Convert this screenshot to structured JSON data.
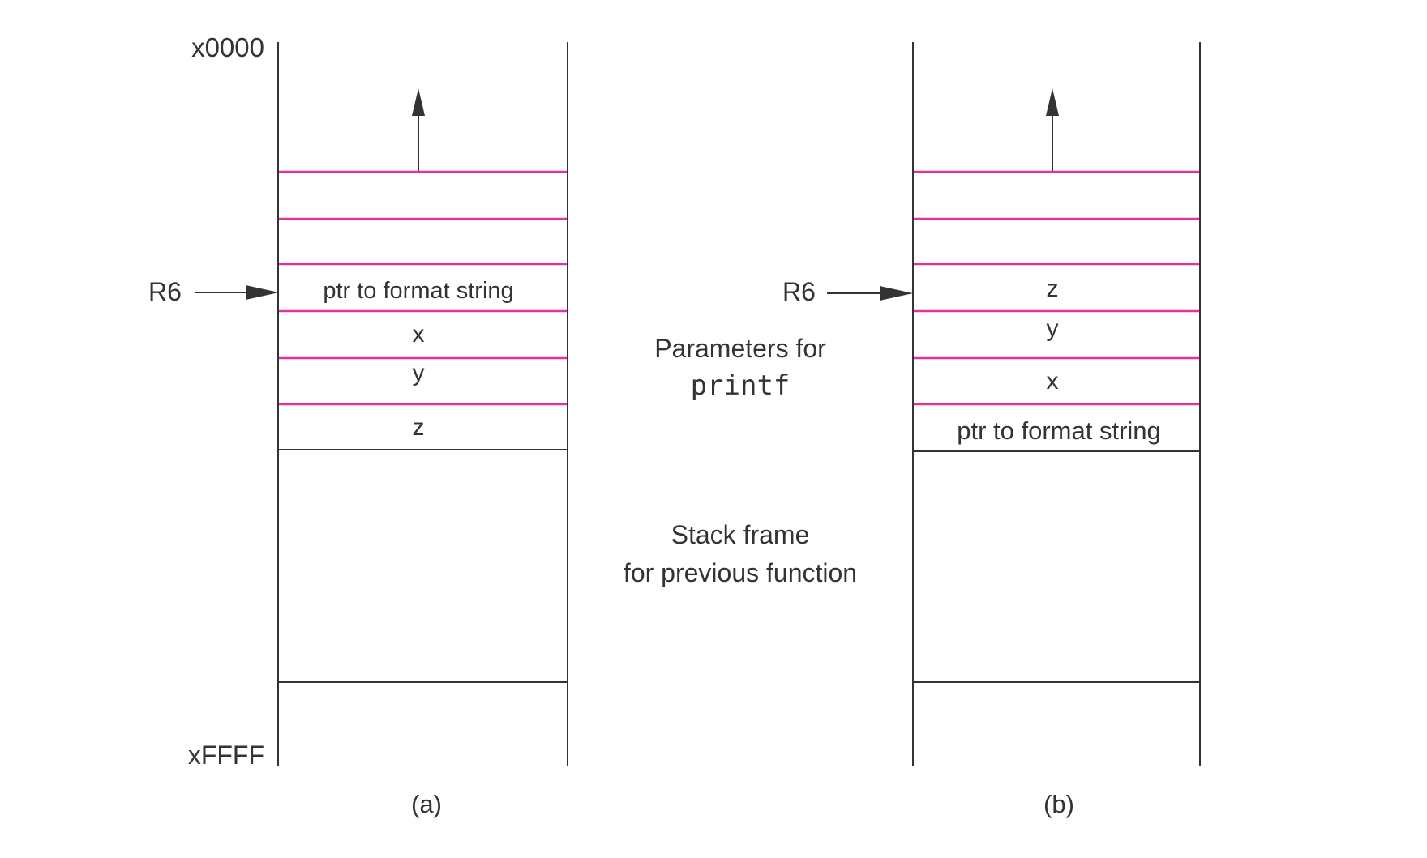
{
  "diagram": {
    "address_top": "x0000",
    "address_bottom": "xFFFF",
    "register_label": "R6",
    "panel_a": {
      "caption": "(a)",
      "slots": [
        "ptr to format string",
        "x",
        "y",
        "z"
      ]
    },
    "panel_b": {
      "caption": "(b)",
      "slots": [
        "z",
        "y",
        "x",
        "ptr to format string"
      ]
    },
    "parameters_label": {
      "line1": "Parameters for",
      "line2": "printf"
    },
    "stack_frame_label": {
      "line1": "Stack frame",
      "line2": "for previous function"
    },
    "colors": {
      "slot_divider": "#e0329a",
      "stroke": "#333333",
      "text": "#333333"
    }
  }
}
